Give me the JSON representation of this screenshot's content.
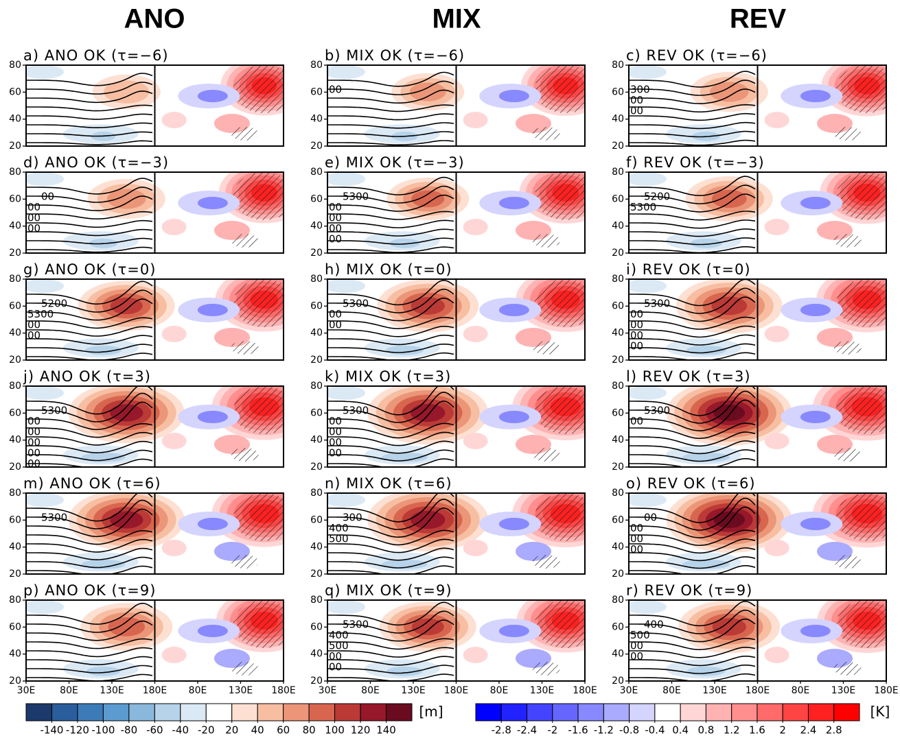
{
  "columns": [
    "ANO",
    "MIX",
    "REV"
  ],
  "panels": [
    {
      "label": "a) ANO OK (τ=−6)",
      "contour_labels": []
    },
    {
      "label": "b) MIX OK (τ=−6)",
      "contour_labels": [
        "00"
      ]
    },
    {
      "label": "c) REV OK (τ=−6)",
      "contour_labels": [
        "300",
        "00",
        "00"
      ]
    },
    {
      "label": "d) ANO OK (τ=−3)",
      "contour_labels": [
        "00",
        "00",
        "00",
        "00"
      ]
    },
    {
      "label": "e) MIX OK (τ=−3)",
      "contour_labels": [
        "5300",
        "00",
        "00",
        "00",
        "00"
      ]
    },
    {
      "label": "f) REV OK (τ=−3)",
      "contour_labels": [
        "5200",
        "5300"
      ]
    },
    {
      "label": "g) ANO OK (τ=0)",
      "contour_labels": [
        "5200",
        "5300",
        "00",
        "00"
      ]
    },
    {
      "label": "h) MIX OK (τ=0)",
      "contour_labels": [
        "5300",
        "00",
        "00"
      ]
    },
    {
      "label": "i) REV OK (τ=0)",
      "contour_labels": [
        "5300",
        "00",
        "00",
        "00",
        "00"
      ]
    },
    {
      "label": "j) ANO OK (τ=3)",
      "contour_labels": [
        "5300",
        "00",
        "00",
        "00",
        "00",
        "00"
      ]
    },
    {
      "label": "k) MIX OK (τ=3)",
      "contour_labels": [
        "5300",
        "00",
        "00",
        "00",
        "00"
      ]
    },
    {
      "label": "l) REV OK (τ=3)",
      "contour_labels": [
        "5300",
        "00"
      ]
    },
    {
      "label": "m) ANO OK (τ=6)",
      "contour_labels": [
        "5300"
      ]
    },
    {
      "label": "n) MIX OK (τ=6)",
      "contour_labels": [
        "300",
        "400",
        "500"
      ]
    },
    {
      "label": "o) REV OK (τ=6)",
      "contour_labels": [
        "00",
        "00",
        "00",
        "00"
      ]
    },
    {
      "label": "p) ANO OK (τ=9)",
      "contour_labels": []
    },
    {
      "label": "q) MIX OK (τ=9)",
      "contour_labels": [
        "5300",
        "400",
        "500",
        "00",
        "00"
      ]
    },
    {
      "label": "r) REV OK (τ=9)",
      "contour_labels": [
        "400",
        "500",
        "00",
        "00"
      ]
    }
  ],
  "ylim": [
    20,
    80
  ],
  "yticks": [
    20,
    40,
    60,
    80
  ],
  "xlim": [
    30,
    180
  ],
  "xticks": [
    {
      "value": 30,
      "label": "30E"
    },
    {
      "value": 80,
      "label": "80E"
    },
    {
      "value": 130,
      "label": "130E"
    },
    {
      "value": 180,
      "label": "180E"
    }
  ],
  "colorbars": [
    {
      "unit": "[m]",
      "ticks": [
        -140,
        -120,
        -100,
        -80,
        -60,
        -40,
        -20,
        20,
        40,
        60,
        80,
        100,
        120,
        140
      ],
      "colors": [
        "#1b3a6b",
        "#2a5d9c",
        "#3d7bb8",
        "#5b9bcf",
        "#8ab8dc",
        "#b7d3ea",
        "#dbe9f5",
        "#ffffff",
        "#fde0d2",
        "#f7bea2",
        "#eb9678",
        "#d8664f",
        "#bb3a36",
        "#96182a",
        "#6b0b1f"
      ]
    },
    {
      "unit": "[K]",
      "ticks": [
        -2.8,
        -2.4,
        -2,
        -1.6,
        -1.2,
        -0.8,
        -0.4,
        0.4,
        0.8,
        1.2,
        1.6,
        2,
        2.4,
        2.8
      ],
      "colors": [
        "#0000ff",
        "#2222ff",
        "#4444ff",
        "#6666ff",
        "#8888ff",
        "#aaaaff",
        "#d4d4ff",
        "#ffffff",
        "#ffd6d6",
        "#ffb2b2",
        "#ff8e8e",
        "#ff6a6a",
        "#ff4444",
        "#ff2020",
        "#ff0000"
      ]
    }
  ]
}
